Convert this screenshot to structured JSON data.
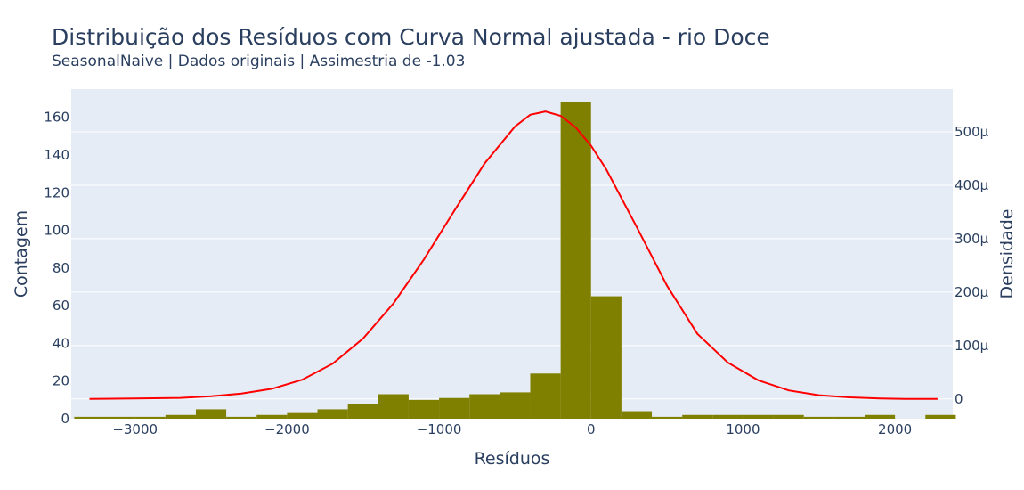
{
  "chart_data": {
    "type": "bar",
    "title": "Distribuição dos Resíduos com Curva Normal ajustada - rio Doce",
    "subtitle": "SeasonalNaive | Dados originais | Assimestria de -1.03",
    "xlabel": "Resíduos",
    "ylabel": "Contagem",
    "y2label": "Densidade",
    "xlim": [
      -3420,
      2380
    ],
    "ylim": [
      0,
      175
    ],
    "y2lim": [
      -37,
      580
    ],
    "x_ticks": [
      -3000,
      -2000,
      -1000,
      0,
      1000,
      2000
    ],
    "x_tick_labels": [
      "−3000",
      "−2000",
      "−1000",
      "0",
      "1000",
      "2000"
    ],
    "y_ticks": [
      0,
      20,
      40,
      60,
      80,
      100,
      120,
      140,
      160
    ],
    "y2_ticks": [
      0,
      100,
      200,
      300,
      400,
      500
    ],
    "y2_tick_labels": [
      "0",
      "100μ",
      "200μ",
      "300μ",
      "400μ",
      "500μ"
    ],
    "histogram": {
      "name": "Contagem",
      "color": "#808000",
      "bin_width": 200,
      "bin_starts": [
        -3400,
        -3200,
        -3000,
        -2800,
        -2600,
        -2400,
        -2200,
        -2000,
        -1800,
        -1600,
        -1400,
        -1200,
        -1000,
        -800,
        -600,
        -400,
        -200,
        0,
        200,
        400,
        600,
        800,
        1000,
        1200,
        1400,
        1600,
        1800,
        2000,
        2200
      ],
      "counts": [
        1,
        1,
        1,
        2,
        5,
        1,
        2,
        3,
        5,
        8,
        13,
        10,
        11,
        13,
        14,
        24,
        168,
        65,
        4,
        1,
        2,
        2,
        2,
        2,
        1,
        1,
        2,
        0,
        2
      ]
    },
    "normal_curve": {
      "name": "Curva Normal",
      "color": "#ff0000",
      "x": [
        -3300,
        -3000,
        -2700,
        -2500,
        -2300,
        -2100,
        -1900,
        -1700,
        -1500,
        -1300,
        -1100,
        -900,
        -700,
        -500,
        -400,
        -300,
        -200,
        -100,
        0,
        100,
        300,
        500,
        700,
        900,
        1100,
        1300,
        1500,
        1700,
        1900,
        2100,
        2280
      ],
      "y": [
        0,
        1,
        2,
        5,
        10,
        19,
        36,
        66,
        113,
        179,
        261,
        352,
        441,
        510,
        532,
        538,
        530,
        508,
        474,
        430,
        322,
        212,
        122,
        68,
        35,
        16,
        7,
        3,
        1,
        0,
        0
      ]
    }
  }
}
